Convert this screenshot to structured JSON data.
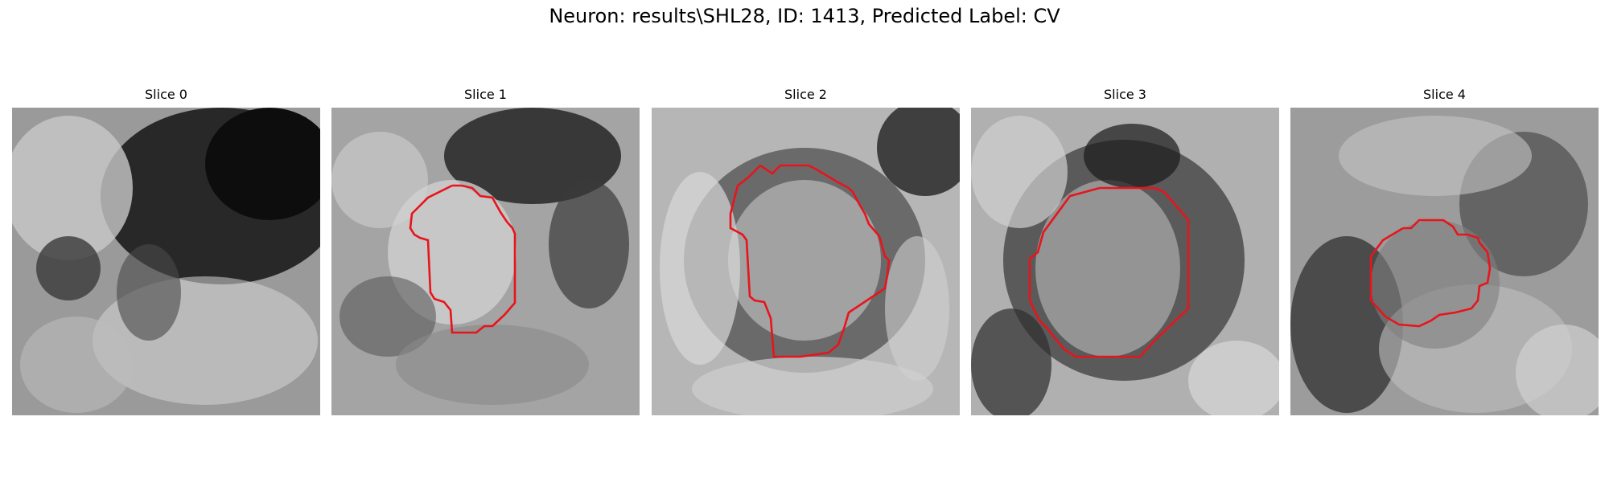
{
  "figure": {
    "suptitle": "Neuron: results\\SHL28, ID: 1413, Predicted Label: CV",
    "contour_color": "#e8141c"
  },
  "slices": [
    {
      "title": "Slice 0",
      "has_contour": false
    },
    {
      "title": "Slice 1",
      "has_contour": true
    },
    {
      "title": "Slice 2",
      "has_contour": true
    },
    {
      "title": "Slice 3",
      "has_contour": true
    },
    {
      "title": "Slice 4",
      "has_contour": true
    }
  ]
}
